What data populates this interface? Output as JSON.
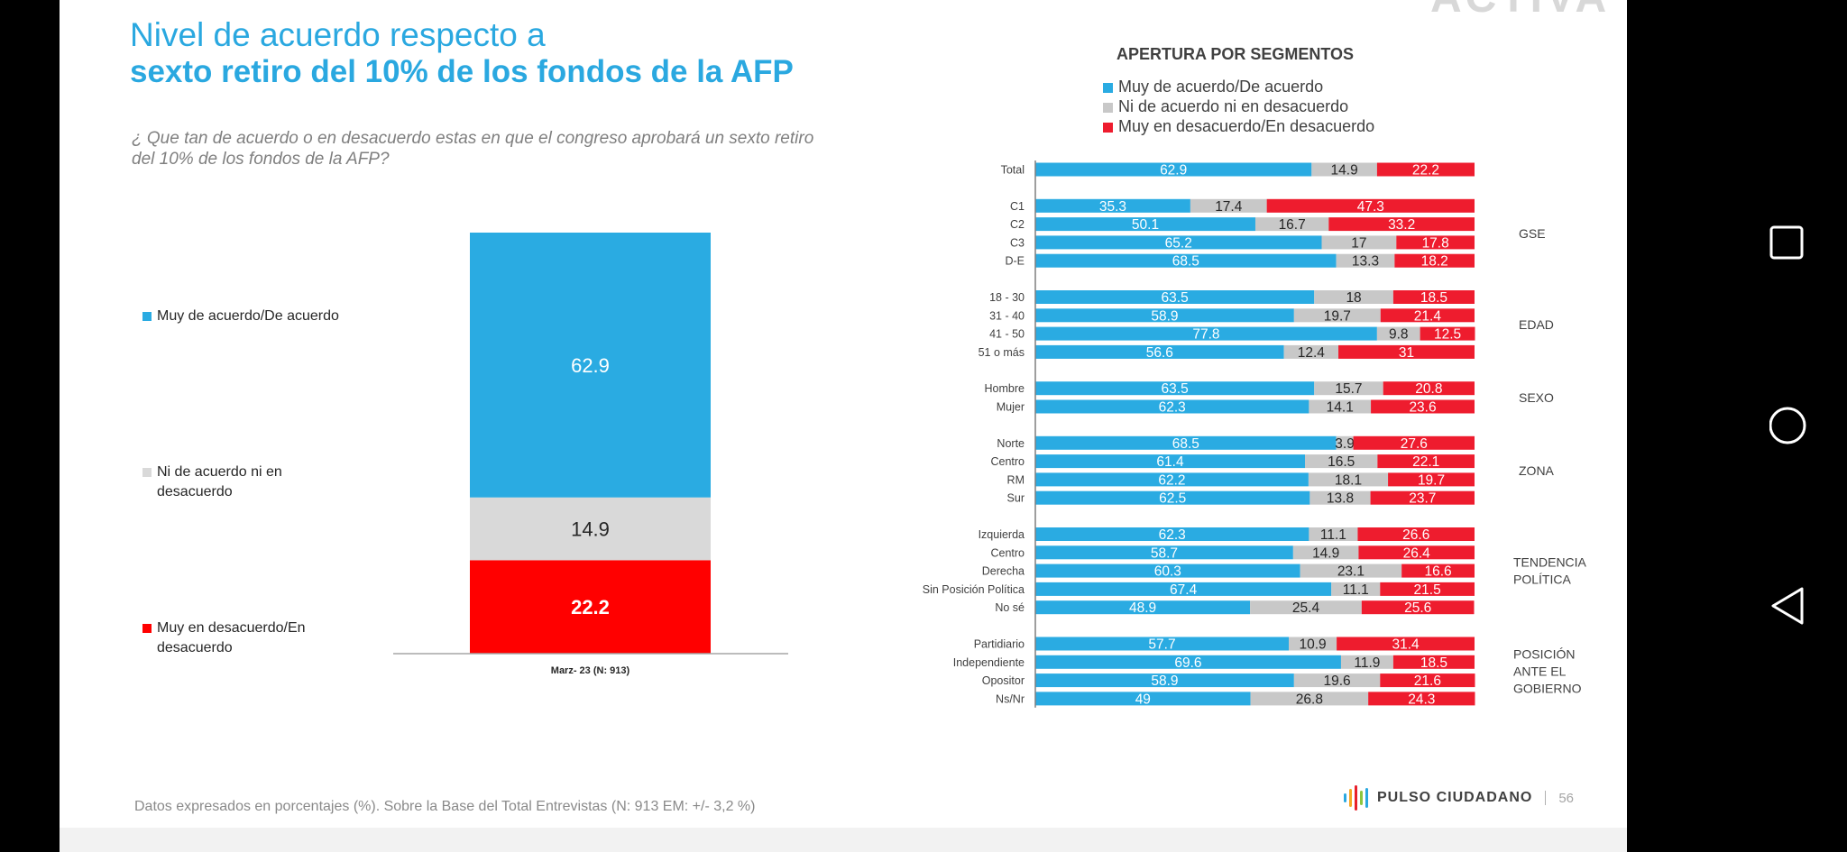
{
  "title_line1": "Nivel de acuerdo respecto a",
  "title_line2": "sexto retiro del 10% de los fondos de la AFP",
  "question": "¿ Que tan de acuerdo o en desacuerdo estas en que el congreso aprobará un sexto retiro del 10% de los fondos de la AFP?",
  "footer_note": "Datos expresados en porcentajes (%). Sobre la Base del Total Entrevistas (N: 913  EM: +/- 3,2 %)",
  "brand": {
    "name": "PULSO CIUDADANO",
    "page": "56",
    "logo_fragment": "ACTIVA",
    "mark_colors": [
      "#2aa8e0",
      "#f7a823",
      "#e8202a",
      "#8cc63f",
      "#2aa8e0"
    ]
  },
  "colors": {
    "agree": "#2aabe2",
    "neutral": "#c8c8c8",
    "disagree": "#ee1c2e",
    "main_disagree": "#ff0000",
    "main_neutral": "#d9d9d9"
  },
  "android_nav": [
    "recents-button",
    "home-button",
    "back-button"
  ],
  "chart_data": [
    {
      "type": "bar",
      "stacked": true,
      "categories": [
        "Marz- 23 (N: 913)"
      ],
      "series": [
        {
          "name": "Muy de acuerdo/De acuerdo",
          "values": [
            62.9
          ]
        },
        {
          "name": "Ni de acuerdo ni en desacuerdo",
          "values": [
            14.9
          ]
        },
        {
          "name": "Muy en desacuerdo/En desacuerdo",
          "values": [
            22.2
          ]
        }
      ],
      "ylim": [
        0,
        100
      ]
    },
    {
      "type": "bar",
      "orientation": "horizontal",
      "stacked": true,
      "title": "APERTURA POR SEGMENTOS",
      "legend": [
        "Muy de acuerdo/De acuerdo",
        "Ni de acuerdo ni en desacuerdo",
        "Muy en desacuerdo/En desacuerdo"
      ],
      "xlim": [
        0,
        100
      ],
      "groups": [
        {
          "name": "",
          "rows": [
            {
              "label": "Total",
              "values": [
                62.9,
                14.9,
                22.2
              ]
            }
          ]
        },
        {
          "name": "GSE",
          "rows": [
            {
              "label": "C1",
              "values": [
                35.3,
                17.4,
                47.3
              ]
            },
            {
              "label": "C2",
              "values": [
                50.1,
                16.7,
                33.2
              ]
            },
            {
              "label": "C3",
              "values": [
                65.2,
                17,
                17.8
              ]
            },
            {
              "label": "D-E",
              "values": [
                68.5,
                13.3,
                18.2
              ]
            }
          ]
        },
        {
          "name": "EDAD",
          "rows": [
            {
              "label": "18 - 30",
              "values": [
                63.5,
                18,
                18.5
              ]
            },
            {
              "label": "31 - 40",
              "values": [
                58.9,
                19.7,
                21.4
              ]
            },
            {
              "label": "41 - 50",
              "values": [
                77.8,
                9.8,
                12.5
              ]
            },
            {
              "label": "51 o más",
              "values": [
                56.6,
                12.4,
                31
              ]
            }
          ]
        },
        {
          "name": "SEXO",
          "rows": [
            {
              "label": "Hombre",
              "values": [
                63.5,
                15.7,
                20.8
              ]
            },
            {
              "label": "Mujer",
              "values": [
                62.3,
                14.1,
                23.6
              ]
            }
          ]
        },
        {
          "name": "ZONA",
          "rows": [
            {
              "label": "Norte",
              "values": [
                68.5,
                3.9,
                27.6
              ]
            },
            {
              "label": "Centro",
              "values": [
                61.4,
                16.5,
                22.1
              ]
            },
            {
              "label": "RM",
              "values": [
                62.2,
                18.1,
                19.7
              ]
            },
            {
              "label": "Sur",
              "values": [
                62.5,
                13.8,
                23.7
              ]
            }
          ]
        },
        {
          "name": "TENDENCIA POLÍTICA",
          "rows": [
            {
              "label": "Izquierda",
              "values": [
                62.3,
                11.1,
                26.6
              ]
            },
            {
              "label": "Centro",
              "values": [
                58.7,
                14.9,
                26.4
              ]
            },
            {
              "label": "Derecha",
              "values": [
                60.3,
                23.1,
                16.6
              ]
            },
            {
              "label": "Sin Posición Política",
              "values": [
                67.4,
                11.1,
                21.5
              ]
            },
            {
              "label": "No sé",
              "values": [
                48.9,
                25.4,
                25.6
              ]
            }
          ]
        },
        {
          "name": "POSICIÓN ANTE EL GOBIERNO",
          "rows": [
            {
              "label": "Partidiario",
              "values": [
                57.7,
                10.9,
                31.4
              ]
            },
            {
              "label": "Independiente",
              "values": [
                69.6,
                11.9,
                18.5
              ]
            },
            {
              "label": "Opositor",
              "values": [
                58.9,
                19.6,
                21.6
              ]
            },
            {
              "label": "Ns/Nr",
              "values": [
                49,
                26.8,
                24.3
              ]
            }
          ]
        }
      ]
    }
  ]
}
